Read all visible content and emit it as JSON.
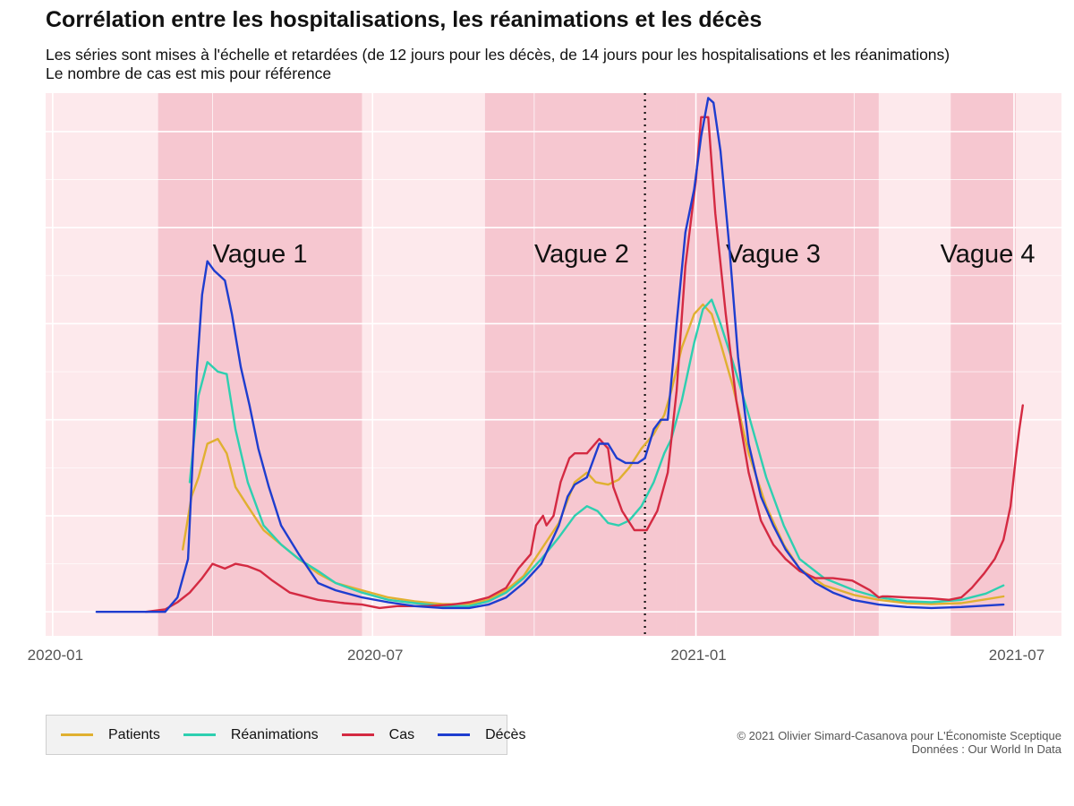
{
  "title": "Corrélation entre les hospitalisations, les réanimations et les décès",
  "subtitle_lines": [
    "Les séries sont mises à l'échelle et retardées (de 12 jours pour les décès, de 14 jours pour les hospitalisations et les réanimations)",
    "Le nombre de cas est mis pour référence"
  ],
  "credits": [
    "© 2021 Olivier Simard-Casanova pour L'Économiste Sceptique",
    "Données : Our World In Data"
  ],
  "chart_data": {
    "type": "line",
    "x_axis": {
      "ticks": [
        "2020-01",
        "2020-07",
        "2021-01",
        "2021-07"
      ],
      "range": [
        "2019-12-28",
        "2021-07-28"
      ]
    },
    "y_axis": {
      "scaled": true,
      "tick_labels_shown": false,
      "ylim": [
        -5,
        108
      ]
    },
    "grid": true,
    "legend_position": "bottom-left",
    "background_color": "#fde9ec",
    "wave_band_color": "#f6c7d0",
    "waves": [
      {
        "label": "Vague 1",
        "start": "2020-03-01",
        "end": "2020-06-25"
      },
      {
        "label": "Vague 2",
        "start": "2020-09-03",
        "end": "2020-12-21"
      },
      {
        "label": "Vague 3",
        "start": "2020-12-21",
        "end": "2021-04-15"
      },
      {
        "label": "Vague 4",
        "start": "2021-05-26",
        "end": "2021-07-02"
      }
    ],
    "reference_line": {
      "date": "2020-12-03",
      "style": "dotted"
    },
    "series": [
      {
        "name": "Patients",
        "color": "#e0b030",
        "points": [
          [
            "2020-03-15",
            13
          ],
          [
            "2020-03-20",
            24
          ],
          [
            "2020-03-24",
            28
          ],
          [
            "2020-03-29",
            35
          ],
          [
            "2020-04-04",
            36
          ],
          [
            "2020-04-09",
            33
          ],
          [
            "2020-04-14",
            26
          ],
          [
            "2020-04-21",
            22
          ],
          [
            "2020-04-30",
            17
          ],
          [
            "2020-05-10",
            14
          ],
          [
            "2020-05-20",
            11
          ],
          [
            "2020-05-31",
            8
          ],
          [
            "2020-06-10",
            6
          ],
          [
            "2020-06-25",
            4.5
          ],
          [
            "2020-07-10",
            3
          ],
          [
            "2020-07-25",
            2.2
          ],
          [
            "2020-08-10",
            1.6
          ],
          [
            "2020-08-25",
            1.6
          ],
          [
            "2020-09-05",
            2.5
          ],
          [
            "2020-09-15",
            4.5
          ],
          [
            "2020-09-25",
            7.5
          ],
          [
            "2020-10-05",
            13
          ],
          [
            "2020-10-15",
            18.5
          ],
          [
            "2020-10-24",
            27
          ],
          [
            "2020-10-31",
            29
          ],
          [
            "2020-11-05",
            27
          ],
          [
            "2020-11-12",
            26.5
          ],
          [
            "2020-11-18",
            27.5
          ],
          [
            "2020-11-24",
            30
          ],
          [
            "2020-12-01",
            34
          ],
          [
            "2020-12-08",
            37
          ],
          [
            "2020-12-14",
            41
          ],
          [
            "2020-12-18",
            46
          ],
          [
            "2020-12-24",
            55
          ],
          [
            "2020-12-31",
            62
          ],
          [
            "2021-01-05",
            64
          ],
          [
            "2021-01-10",
            62
          ],
          [
            "2021-01-15",
            56
          ],
          [
            "2021-01-22",
            47
          ],
          [
            "2021-01-31",
            33
          ],
          [
            "2021-02-10",
            22
          ],
          [
            "2021-02-20",
            14
          ],
          [
            "2021-03-01",
            9
          ],
          [
            "2021-03-15",
            5.5
          ],
          [
            "2021-04-01",
            3.5
          ],
          [
            "2021-04-15",
            2.5
          ],
          [
            "2021-05-01",
            1.8
          ],
          [
            "2021-05-15",
            1.6
          ],
          [
            "2021-06-01",
            1.8
          ],
          [
            "2021-06-15",
            2.6
          ],
          [
            "2021-06-25",
            3.2
          ]
        ]
      },
      {
        "name": "Réanimations",
        "color": "#2ecfb0",
        "points": [
          [
            "2020-03-19",
            27
          ],
          [
            "2020-03-24",
            45
          ],
          [
            "2020-03-29",
            52
          ],
          [
            "2020-04-04",
            50
          ],
          [
            "2020-04-09",
            49.5
          ],
          [
            "2020-04-14",
            38
          ],
          [
            "2020-04-21",
            27
          ],
          [
            "2020-04-30",
            18
          ],
          [
            "2020-05-10",
            14
          ],
          [
            "2020-05-20",
            11
          ],
          [
            "2020-05-31",
            8.5
          ],
          [
            "2020-06-10",
            6
          ],
          [
            "2020-06-25",
            4
          ],
          [
            "2020-07-10",
            2.5
          ],
          [
            "2020-07-25",
            1.8
          ],
          [
            "2020-08-10",
            1.2
          ],
          [
            "2020-08-25",
            1.2
          ],
          [
            "2020-09-05",
            2.2
          ],
          [
            "2020-09-15",
            4
          ],
          [
            "2020-09-25",
            7
          ],
          [
            "2020-10-05",
            11
          ],
          [
            "2020-10-15",
            15.5
          ],
          [
            "2020-10-24",
            20
          ],
          [
            "2020-10-31",
            22
          ],
          [
            "2020-11-06",
            21
          ],
          [
            "2020-11-12",
            18.5
          ],
          [
            "2020-11-18",
            18
          ],
          [
            "2020-11-24",
            19
          ],
          [
            "2020-12-01",
            22
          ],
          [
            "2020-12-08",
            27
          ],
          [
            "2020-12-14",
            33
          ],
          [
            "2020-12-18",
            36
          ],
          [
            "2020-12-24",
            44
          ],
          [
            "2020-12-31",
            56
          ],
          [
            "2021-01-05",
            63
          ],
          [
            "2021-01-10",
            65
          ],
          [
            "2021-01-15",
            60
          ],
          [
            "2021-01-22",
            52
          ],
          [
            "2021-01-31",
            41
          ],
          [
            "2021-02-10",
            28
          ],
          [
            "2021-02-20",
            18
          ],
          [
            "2021-03-01",
            11
          ],
          [
            "2021-03-15",
            7
          ],
          [
            "2021-04-01",
            4.5
          ],
          [
            "2021-04-15",
            3
          ],
          [
            "2021-05-01",
            2.2
          ],
          [
            "2021-05-15",
            2
          ],
          [
            "2021-06-01",
            2.5
          ],
          [
            "2021-06-15",
            3.8
          ],
          [
            "2021-06-25",
            5.5
          ]
        ]
      },
      {
        "name": "Cas",
        "color": "#d42a42",
        "points": [
          [
            "2020-02-23",
            0
          ],
          [
            "2020-03-05",
            0.5
          ],
          [
            "2020-03-12",
            2
          ],
          [
            "2020-03-19",
            4
          ],
          [
            "2020-03-26",
            7
          ],
          [
            "2020-04-01",
            10
          ],
          [
            "2020-04-08",
            9
          ],
          [
            "2020-04-14",
            10
          ],
          [
            "2020-04-21",
            9.5
          ],
          [
            "2020-04-28",
            8.5
          ],
          [
            "2020-05-05",
            6.5
          ],
          [
            "2020-05-15",
            4
          ],
          [
            "2020-05-31",
            2.5
          ],
          [
            "2020-06-15",
            1.8
          ],
          [
            "2020-06-25",
            1.5
          ],
          [
            "2020-07-05",
            0.8
          ],
          [
            "2020-07-15",
            1.2
          ],
          [
            "2020-08-01",
            1.2
          ],
          [
            "2020-08-15",
            1.5
          ],
          [
            "2020-08-25",
            2
          ],
          [
            "2020-09-05",
            3
          ],
          [
            "2020-09-15",
            5
          ],
          [
            "2020-09-22",
            9
          ],
          [
            "2020-09-29",
            12
          ],
          [
            "2020-10-02",
            18
          ],
          [
            "2020-10-06",
            20
          ],
          [
            "2020-10-08",
            18
          ],
          [
            "2020-10-12",
            20
          ],
          [
            "2020-10-16",
            27
          ],
          [
            "2020-10-21",
            32
          ],
          [
            "2020-10-24",
            33
          ],
          [
            "2020-10-31",
            33
          ],
          [
            "2020-11-07",
            36
          ],
          [
            "2020-11-12",
            34
          ],
          [
            "2020-11-15",
            26
          ],
          [
            "2020-11-20",
            21
          ],
          [
            "2020-11-27",
            17
          ],
          [
            "2020-12-01",
            17
          ],
          [
            "2020-12-04",
            17
          ],
          [
            "2020-12-10",
            21
          ],
          [
            "2020-12-16",
            29
          ],
          [
            "2020-12-21",
            46
          ],
          [
            "2020-12-26",
            72
          ],
          [
            "2021-01-01",
            90
          ],
          [
            "2021-01-04",
            103
          ],
          [
            "2021-01-08",
            103
          ],
          [
            "2021-01-12",
            83
          ],
          [
            "2021-01-18",
            62
          ],
          [
            "2021-01-24",
            44
          ],
          [
            "2021-01-31",
            29
          ],
          [
            "2021-02-07",
            19
          ],
          [
            "2021-02-14",
            14
          ],
          [
            "2021-02-21",
            11
          ],
          [
            "2021-03-01",
            8.5
          ],
          [
            "2021-03-10",
            7
          ],
          [
            "2021-03-20",
            7
          ],
          [
            "2021-03-31",
            6.5
          ],
          [
            "2021-04-10",
            4.5
          ],
          [
            "2021-04-15",
            3
          ],
          [
            "2021-04-17",
            3.2
          ],
          [
            "2021-04-20",
            3.2
          ],
          [
            "2021-05-01",
            3
          ],
          [
            "2021-05-15",
            2.8
          ],
          [
            "2021-05-25",
            2.5
          ],
          [
            "2021-06-01",
            3
          ],
          [
            "2021-06-07",
            5
          ],
          [
            "2021-06-14",
            8
          ],
          [
            "2021-06-20",
            11
          ],
          [
            "2021-06-25",
            15
          ],
          [
            "2021-06-29",
            22
          ],
          [
            "2021-07-02",
            32
          ],
          [
            "2021-07-04",
            38
          ],
          [
            "2021-07-06",
            43
          ]
        ]
      },
      {
        "name": "Décès",
        "color": "#1e3dcf",
        "points": [
          [
            "2020-01-26",
            0
          ],
          [
            "2020-02-23",
            0
          ],
          [
            "2020-03-05",
            0
          ],
          [
            "2020-03-12",
            3
          ],
          [
            "2020-03-18",
            11
          ],
          [
            "2020-03-23",
            50
          ],
          [
            "2020-03-26",
            66
          ],
          [
            "2020-03-29",
            73
          ],
          [
            "2020-04-02",
            71
          ],
          [
            "2020-04-05",
            70
          ],
          [
            "2020-04-08",
            69
          ],
          [
            "2020-04-12",
            62
          ],
          [
            "2020-04-17",
            51
          ],
          [
            "2020-04-22",
            43
          ],
          [
            "2020-04-27",
            34
          ],
          [
            "2020-05-03",
            26
          ],
          [
            "2020-05-10",
            18
          ],
          [
            "2020-05-20",
            12
          ],
          [
            "2020-05-31",
            6
          ],
          [
            "2020-06-10",
            4.5
          ],
          [
            "2020-06-25",
            3
          ],
          [
            "2020-07-10",
            2
          ],
          [
            "2020-07-25",
            1.2
          ],
          [
            "2020-08-10",
            0.8
          ],
          [
            "2020-08-25",
            0.8
          ],
          [
            "2020-09-05",
            1.5
          ],
          [
            "2020-09-15",
            3
          ],
          [
            "2020-09-25",
            6
          ],
          [
            "2020-10-05",
            10
          ],
          [
            "2020-10-15",
            18
          ],
          [
            "2020-10-20",
            24
          ],
          [
            "2020-10-24",
            26.5
          ],
          [
            "2020-10-31",
            28
          ],
          [
            "2020-11-07",
            35
          ],
          [
            "2020-11-12",
            35
          ],
          [
            "2020-11-17",
            32
          ],
          [
            "2020-11-22",
            31
          ],
          [
            "2020-11-29",
            31
          ],
          [
            "2020-12-03",
            32
          ],
          [
            "2020-12-08",
            38
          ],
          [
            "2020-12-12",
            40
          ],
          [
            "2020-12-16",
            40
          ],
          [
            "2020-12-21",
            60
          ],
          [
            "2020-12-26",
            79
          ],
          [
            "2020-12-31",
            88
          ],
          [
            "2021-01-04",
            99
          ],
          [
            "2021-01-08",
            107
          ],
          [
            "2021-01-11",
            106
          ],
          [
            "2021-01-15",
            96
          ],
          [
            "2021-01-20",
            76
          ],
          [
            "2021-01-25",
            53
          ],
          [
            "2021-01-31",
            35
          ],
          [
            "2021-02-07",
            24
          ],
          [
            "2021-02-14",
            18
          ],
          [
            "2021-02-21",
            13
          ],
          [
            "2021-03-01",
            9
          ],
          [
            "2021-03-10",
            6
          ],
          [
            "2021-03-20",
            4
          ],
          [
            "2021-03-31",
            2.5
          ],
          [
            "2021-04-15",
            1.5
          ],
          [
            "2021-05-01",
            1
          ],
          [
            "2021-05-15",
            0.8
          ],
          [
            "2021-06-01",
            1
          ],
          [
            "2021-06-15",
            1.3
          ],
          [
            "2021-06-25",
            1.5
          ]
        ]
      }
    ]
  }
}
